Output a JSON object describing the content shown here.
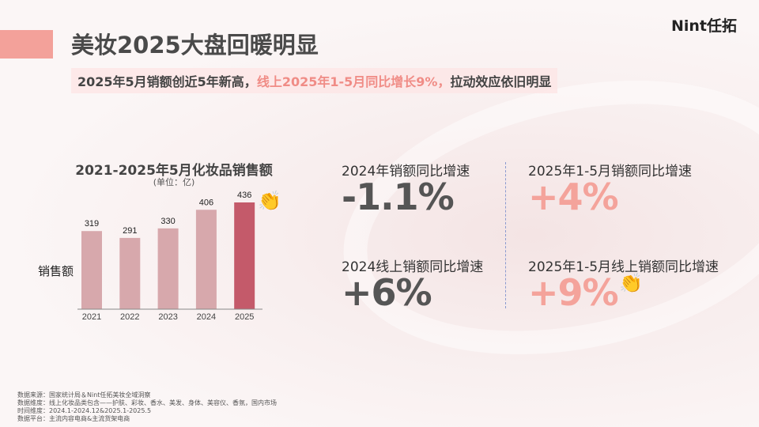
{
  "brand": "Nint任拓",
  "title": "美妆2025大盘回暖明显",
  "subtitle": {
    "part1": "2025年5月销额创近5年新高，",
    "highlight": "线上2025年1-5月同比增长9%，",
    "part2": "拉动效应依旧明显"
  },
  "chart_data": {
    "type": "bar",
    "title": "2021-2025年5月化妆品销售额",
    "unit": "(单位：亿)",
    "ylabel": "销售额",
    "categories": [
      "2021",
      "2022",
      "2023",
      "2024",
      "2025"
    ],
    "values": [
      319,
      291,
      330,
      406,
      436
    ],
    "ylim": [
      0,
      436
    ],
    "colors": {
      "normal": "#d7a8ac",
      "highlight": "#c45a6a"
    }
  },
  "stats": [
    {
      "label": "2024年销额同比增速",
      "value": "-1.1%"
    },
    {
      "label": "2025年1-5月销额同比增速",
      "value": "+4%"
    },
    {
      "label": "2024线上销额同比增速",
      "value": "+6%"
    },
    {
      "label": "2025年1-5月线上销额同比增速",
      "value": "+9%"
    }
  ],
  "footer": [
    "数据来源：国家统计局＆Nint任拓美妆全域洞察",
    "数据维度：线上化妆品类包含——护肤、彩妆、香水、美发、身体、美容仪、香氛，国内市场",
    "时间维度：2024.1-2024.12&2025.1-2025.5",
    "数据平台：主流内容电商&主流货架电商"
  ]
}
